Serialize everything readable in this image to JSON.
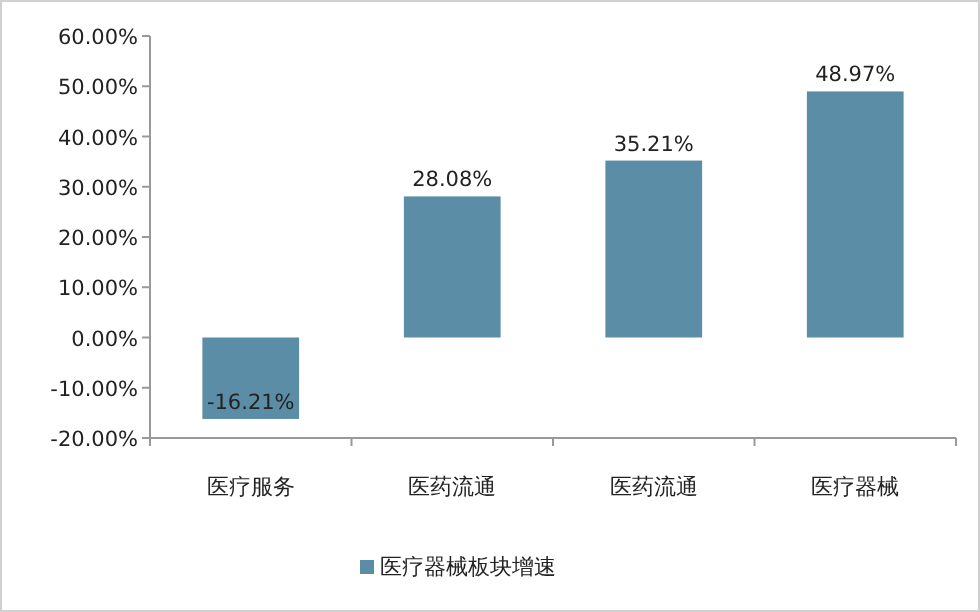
{
  "chart_data": {
    "type": "bar",
    "categories": [
      "医疗服务",
      "医药流通",
      "医药流通",
      "医疗器械"
    ],
    "series": [
      {
        "name": "医疗器械板块增速",
        "color": "#5b8ea6",
        "values": [
          -16.21,
          28.08,
          35.21,
          48.97
        ],
        "value_labels": [
          "-16.21%",
          "28.08%",
          "35.21%",
          "48.97%"
        ]
      }
    ],
    "ylim": [
      -20,
      60
    ],
    "yticks": [
      {
        "value": -20,
        "label": "-20.00%"
      },
      {
        "value": -10,
        "label": "-10.00%"
      },
      {
        "value": 0,
        "label": "0.00%"
      },
      {
        "value": 10,
        "label": "10.00%"
      },
      {
        "value": 20,
        "label": "20.00%"
      },
      {
        "value": 30,
        "label": "30.00%"
      },
      {
        "value": 40,
        "label": "40.00%"
      },
      {
        "value": 50,
        "label": "50.00%"
      },
      {
        "value": 60,
        "label": "60.00%"
      }
    ],
    "legend": "bottom"
  }
}
